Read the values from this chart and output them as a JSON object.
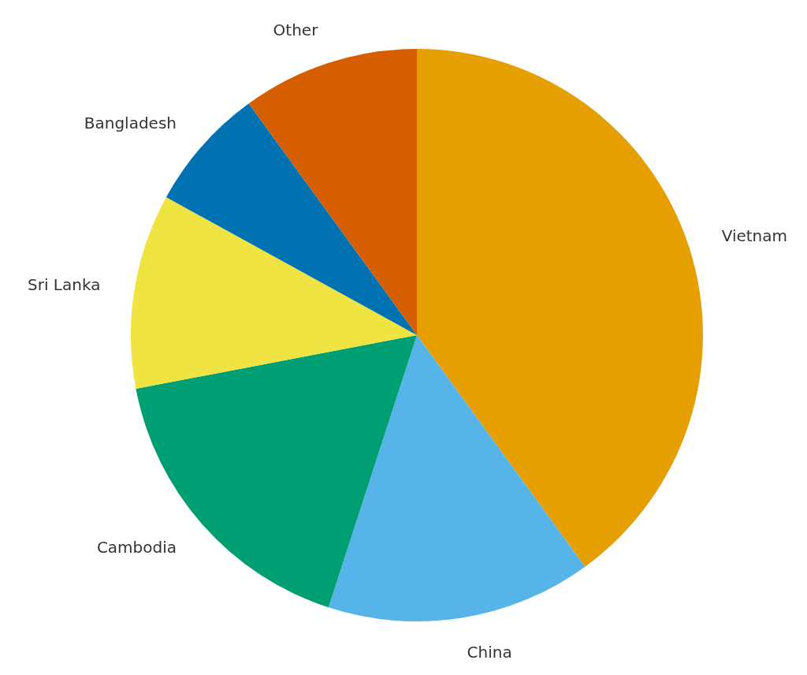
{
  "chart_data": {
    "type": "pie",
    "categories": [
      "Vietnam",
      "China",
      "Cambodia",
      "Sri Lanka",
      "Bangladesh",
      "Other"
    ],
    "values": [
      40,
      15,
      17,
      11,
      7,
      10
    ],
    "colors": [
      "#e69f00",
      "#56b4e9",
      "#009e73",
      "#f0e442",
      "#0072b2",
      "#d55e00"
    ]
  }
}
